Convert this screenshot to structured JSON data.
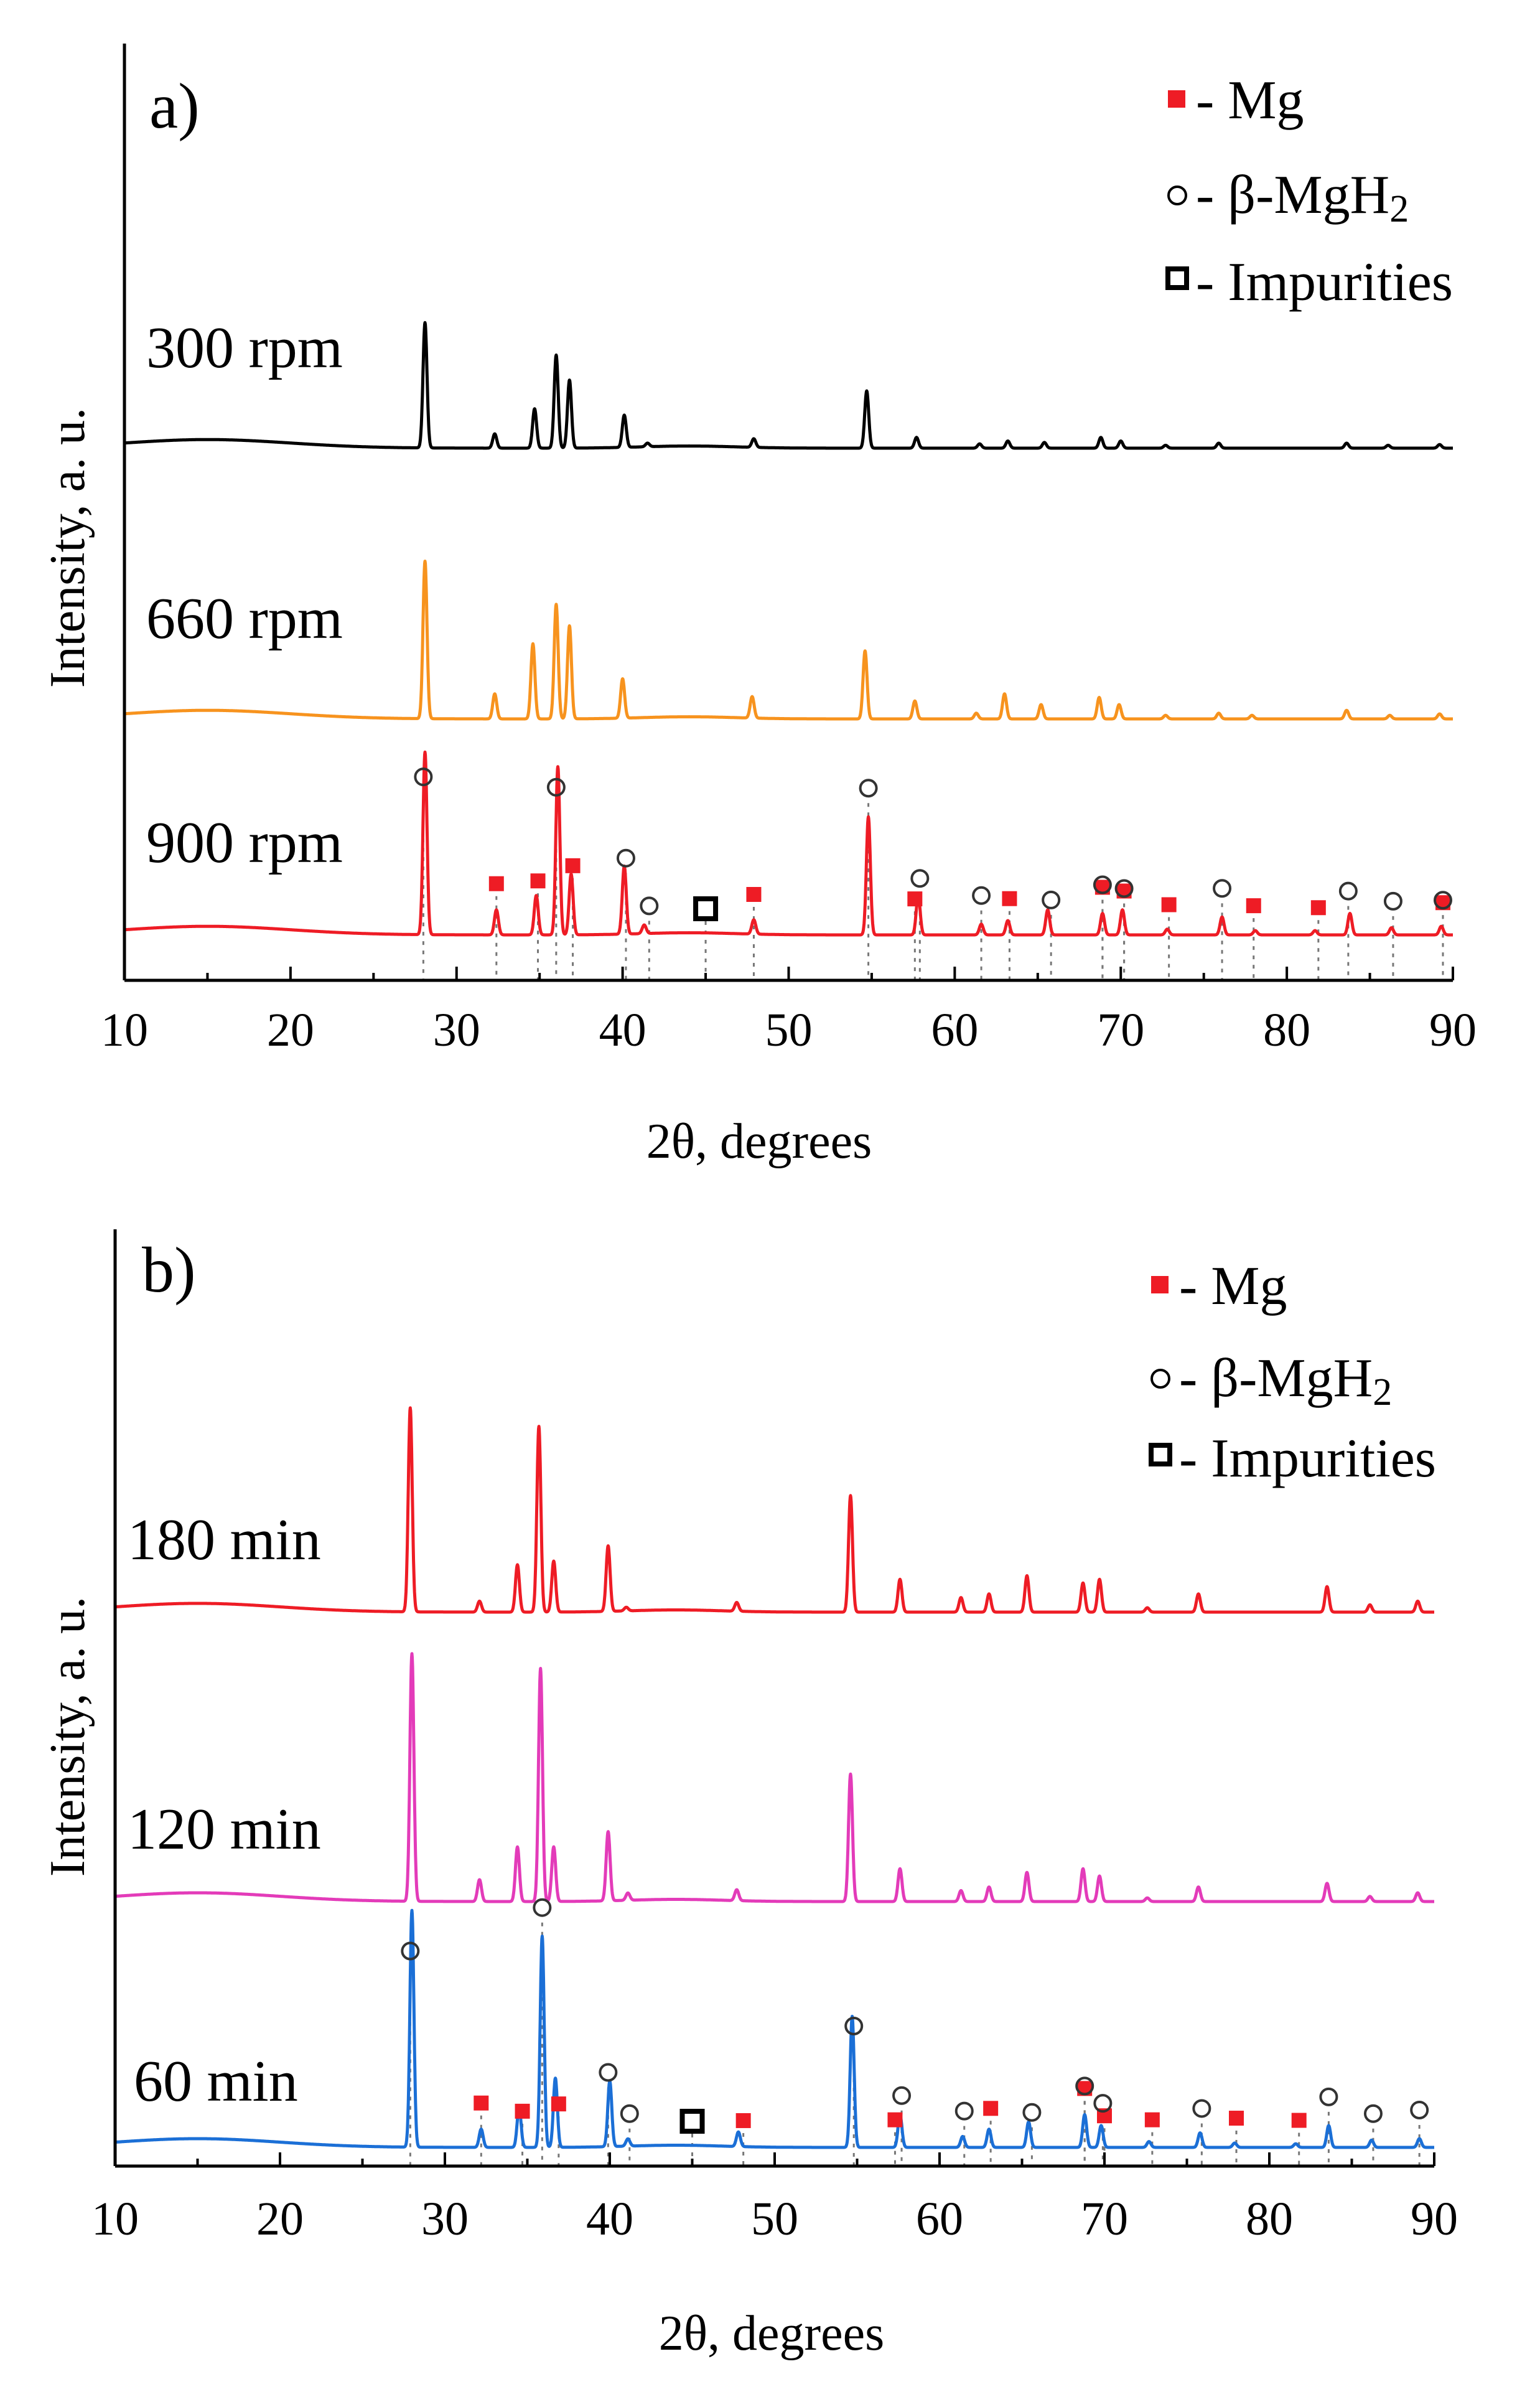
{
  "colors": {
    "mg": "#ee1c25",
    "mgh2": "#333333",
    "imp": "#000000",
    "guide": "#777777",
    "axis": "#000000"
  },
  "chart_data": [
    {
      "type": "line",
      "panel_label": "a)",
      "xlabel": "2θ, degrees",
      "ylabel": "Intensity, a. u.",
      "xlim": [
        10,
        90
      ],
      "xticks": [
        "10",
        "20",
        "30",
        "40",
        "50",
        "60",
        "70",
        "80",
        "90"
      ],
      "legend": {
        "position": "top-right",
        "mg": "- Mg",
        "mgh2_prefix": "- β-MgH",
        "mgh2_sub": "2",
        "impurities": "- Impurities"
      },
      "series": [
        {
          "name": "300 rpm",
          "color": "#ee1c25",
          "offset": 2.6,
          "peaks": [
            [
              28.1,
              2.55
            ],
            [
              32.4,
              0.35
            ],
            [
              34.8,
              0.55
            ],
            [
              36.1,
              2.35
            ],
            [
              36.9,
              0.85
            ],
            [
              40.1,
              0.95
            ],
            [
              41.3,
              0.12
            ],
            [
              47.9,
              0.2
            ],
            [
              54.8,
              1.65
            ],
            [
              57.8,
              0.55
            ],
            [
              61.6,
              0.15
            ],
            [
              63.2,
              0.2
            ],
            [
              65.6,
              0.35
            ],
            [
              68.9,
              0.3
            ],
            [
              70.1,
              0.35
            ],
            [
              72.8,
              0.08
            ],
            [
              76.1,
              0.25
            ],
            [
              78.1,
              0.06
            ],
            [
              81.7,
              0.06
            ],
            [
              83.8,
              0.3
            ],
            [
              86.3,
              0.1
            ],
            [
              89.3,
              0.12
            ]
          ]
        },
        {
          "name": "660 rpm",
          "color": "#f7931e",
          "offset": 1.3,
          "peaks": [
            [
              28.1,
              2.2
            ],
            [
              32.3,
              0.35
            ],
            [
              34.6,
              1.05
            ],
            [
              36.0,
              1.6
            ],
            [
              36.8,
              1.3
            ],
            [
              40.0,
              0.55
            ],
            [
              47.8,
              0.3
            ],
            [
              54.6,
              0.95
            ],
            [
              57.6,
              0.25
            ],
            [
              61.3,
              0.08
            ],
            [
              63.0,
              0.35
            ],
            [
              65.2,
              0.2
            ],
            [
              68.7,
              0.3
            ],
            [
              69.9,
              0.2
            ],
            [
              72.7,
              0.05
            ],
            [
              75.9,
              0.08
            ],
            [
              77.9,
              0.05
            ],
            [
              83.6,
              0.12
            ],
            [
              86.2,
              0.05
            ],
            [
              89.2,
              0.07
            ]
          ]
        },
        {
          "name": "900 rpm",
          "color": "#000000",
          "offset": 0.0,
          "peaks": [
            [
              28.1,
              1.75
            ],
            [
              32.3,
              0.2
            ],
            [
              34.7,
              0.55
            ],
            [
              36.0,
              1.3
            ],
            [
              36.8,
              0.95
            ],
            [
              40.1,
              0.45
            ],
            [
              41.5,
              0.05
            ],
            [
              47.9,
              0.12
            ],
            [
              54.7,
              0.8
            ],
            [
              57.7,
              0.15
            ],
            [
              61.5,
              0.06
            ],
            [
              63.2,
              0.1
            ],
            [
              65.4,
              0.08
            ],
            [
              68.8,
              0.15
            ],
            [
              70.0,
              0.1
            ],
            [
              72.7,
              0.04
            ],
            [
              75.9,
              0.07
            ],
            [
              83.6,
              0.07
            ],
            [
              86.1,
              0.04
            ],
            [
              89.2,
              0.05
            ]
          ]
        }
      ],
      "markers": {
        "mg": [
          32.4,
          34.9,
          37.0,
          47.9,
          57.6,
          63.3,
          68.9,
          70.2,
          72.9,
          78.0,
          81.9,
          89.4
        ],
        "mgh2": [
          28.0,
          36.0,
          40.2,
          41.6,
          54.8,
          57.9,
          61.6,
          65.8,
          68.9,
          70.2,
          76.1,
          83.7,
          86.4,
          89.4
        ],
        "impurities": [
          45.0
        ]
      }
    },
    {
      "type": "line",
      "panel_label": "b)",
      "xlabel": "2θ, degrees",
      "ylabel": "Intensity, a. u.",
      "xlim": [
        10,
        90
      ],
      "xticks": [
        "10",
        "20",
        "30",
        "40",
        "50",
        "60",
        "70",
        "80",
        "90"
      ],
      "legend": {
        "position": "top-right",
        "mg": "- Mg",
        "mgh2_prefix": "- β-MgH",
        "mgh2_sub": "2",
        "impurities": "- Impurities"
      },
      "series": [
        {
          "name": "180 min",
          "color": "#1b6fd6",
          "offset": 2.75,
          "peaks": [
            [
              28.0,
              3.25
            ],
            [
              32.2,
              0.25
            ],
            [
              34.5,
              0.55
            ],
            [
              35.9,
              2.9
            ],
            [
              36.7,
              0.95
            ],
            [
              40.0,
              0.9
            ],
            [
              41.1,
              0.1
            ],
            [
              47.8,
              0.2
            ],
            [
              54.7,
              1.8
            ],
            [
              57.6,
              0.45
            ],
            [
              61.4,
              0.15
            ],
            [
              63.0,
              0.25
            ],
            [
              65.4,
              0.35
            ],
            [
              68.8,
              0.45
            ],
            [
              69.8,
              0.3
            ],
            [
              72.7,
              0.08
            ],
            [
              75.8,
              0.2
            ],
            [
              77.9,
              0.06
            ],
            [
              81.6,
              0.05
            ],
            [
              83.6,
              0.3
            ],
            [
              86.2,
              0.1
            ],
            [
              89.1,
              0.12
            ]
          ]
        },
        {
          "name": "120 min",
          "color": "#e33bb9",
          "offset": 1.35,
          "peaks": [
            [
              28.0,
              3.4
            ],
            [
              32.1,
              0.3
            ],
            [
              34.4,
              0.75
            ],
            [
              35.8,
              3.2
            ],
            [
              36.6,
              0.75
            ],
            [
              39.9,
              0.95
            ],
            [
              41.1,
              0.1
            ],
            [
              47.7,
              0.15
            ],
            [
              54.6,
              1.75
            ],
            [
              57.6,
              0.45
            ],
            [
              61.3,
              0.15
            ],
            [
              63.0,
              0.2
            ],
            [
              65.3,
              0.4
            ],
            [
              68.7,
              0.45
            ],
            [
              69.7,
              0.35
            ],
            [
              72.6,
              0.05
            ],
            [
              75.7,
              0.2
            ],
            [
              83.5,
              0.25
            ],
            [
              86.1,
              0.07
            ],
            [
              89.0,
              0.12
            ]
          ]
        },
        {
          "name": "60 min",
          "color": "#ee1c25",
          "offset": 0.0,
          "peaks": [
            [
              27.9,
              2.8
            ],
            [
              32.1,
              0.15
            ],
            [
              34.4,
              0.65
            ],
            [
              35.7,
              2.55
            ],
            [
              36.6,
              0.7
            ],
            [
              39.9,
              0.9
            ],
            [
              41.0,
              0.05
            ],
            [
              47.7,
              0.12
            ],
            [
              54.6,
              1.6
            ],
            [
              57.6,
              0.45
            ],
            [
              61.3,
              0.2
            ],
            [
              63.0,
              0.25
            ],
            [
              65.3,
              0.5
            ],
            [
              68.7,
              0.4
            ],
            [
              69.7,
              0.45
            ],
            [
              72.6,
              0.06
            ],
            [
              75.7,
              0.25
            ],
            [
              83.5,
              0.35
            ],
            [
              86.1,
              0.1
            ],
            [
              89.0,
              0.15
            ]
          ]
        }
      ],
      "markers": {
        "mg": [
          32.2,
          34.7,
          36.9,
          48.1,
          57.3,
          63.1,
          68.8,
          70.0,
          72.9,
          78.0,
          81.8
        ],
        "mgh2": [
          27.9,
          35.9,
          39.9,
          41.2,
          54.8,
          57.7,
          61.5,
          65.6,
          68.8,
          69.9,
          75.9,
          83.6,
          86.3,
          89.1
        ],
        "impurities": [
          45.0
        ]
      }
    }
  ]
}
